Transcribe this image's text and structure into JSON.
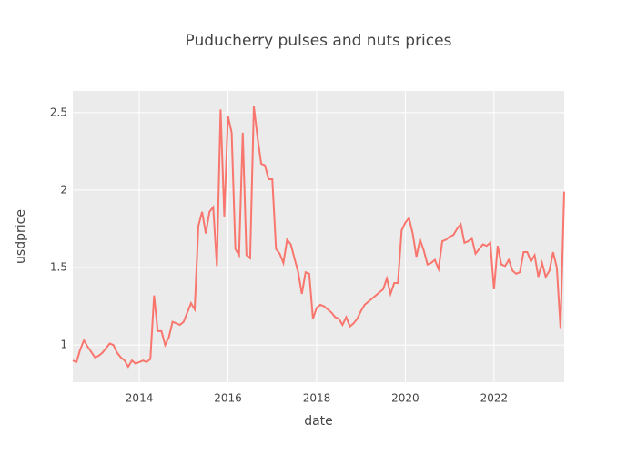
{
  "chart_data": {
    "type": "line",
    "title": "Puducherry pulses and nuts prices",
    "x_label": "date",
    "y_label": "usdprice",
    "x": [
      "2012-07",
      "2012-08",
      "2012-09",
      "2012-10",
      "2012-11",
      "2013-01",
      "2013-02",
      "2013-03",
      "2013-05",
      "2013-06",
      "2013-07",
      "2013-08",
      "2013-09",
      "2013-10",
      "2013-11",
      "2013-12",
      "2014-01",
      "2014-02",
      "2014-03",
      "2014-04",
      "2014-05",
      "2014-06",
      "2014-07",
      "2014-08",
      "2014-09",
      "2014-10",
      "2014-11",
      "2014-12",
      "2015-01",
      "2015-02",
      "2015-03",
      "2015-04",
      "2015-05",
      "2015-06",
      "2015-07",
      "2015-08",
      "2015-09",
      "2015-10",
      "2015-11",
      "2015-12",
      "2016-01",
      "2016-02",
      "2016-03",
      "2016-04",
      "2016-05",
      "2016-06",
      "2016-07",
      "2016-08",
      "2016-09",
      "2016-10",
      "2016-11",
      "2016-12",
      "2017-01",
      "2017-02",
      "2017-03",
      "2017-04",
      "2017-05",
      "2017-06",
      "2017-07",
      "2017-08",
      "2017-09",
      "2017-10",
      "2017-11",
      "2017-12",
      "2018-01",
      "2018-02",
      "2018-03",
      "2018-04",
      "2018-05",
      "2018-06",
      "2018-07",
      "2018-08",
      "2018-09",
      "2018-10",
      "2018-11",
      "2018-12",
      "2019-01",
      "2019-02",
      "2019-03",
      "2019-04",
      "2019-05",
      "2019-06",
      "2019-07",
      "2019-08",
      "2019-09",
      "2019-10",
      "2019-11",
      "2019-12",
      "2020-01",
      "2020-02",
      "2020-03",
      "2020-04",
      "2020-05",
      "2020-06",
      "2020-07",
      "2020-08",
      "2020-09",
      "2020-10",
      "2020-11",
      "2020-12",
      "2021-01",
      "2021-02",
      "2021-03",
      "2021-04",
      "2021-05",
      "2021-06",
      "2021-07",
      "2021-08",
      "2021-09",
      "2021-10",
      "2021-11",
      "2021-12",
      "2022-01",
      "2022-02",
      "2022-03",
      "2022-04",
      "2022-05",
      "2022-06",
      "2022-07",
      "2022-08",
      "2022-09",
      "2022-10",
      "2022-11",
      "2022-12",
      "2023-01",
      "2023-02",
      "2023-03",
      "2023-04",
      "2023-05",
      "2023-06",
      "2023-07",
      "2023-08"
    ],
    "series": [
      {
        "name": "usdprice",
        "color": "#F8766D",
        "values": [
          0.9,
          0.89,
          0.97,
          1.03,
          0.99,
          0.92,
          0.93,
          0.95,
          1.01,
          1.0,
          0.95,
          0.92,
          0.9,
          0.86,
          0.9,
          0.88,
          0.89,
          0.9,
          0.89,
          0.91,
          1.32,
          1.09,
          1.09,
          1.0,
          1.05,
          1.15,
          1.14,
          1.13,
          1.15,
          1.21,
          1.27,
          1.23,
          1.77,
          1.86,
          1.72,
          1.86,
          1.89,
          1.51,
          2.52,
          1.83,
          2.48,
          2.37,
          1.62,
          1.58,
          2.37,
          1.58,
          1.56,
          2.54,
          2.34,
          2.17,
          2.16,
          2.07,
          2.07,
          1.62,
          1.59,
          1.53,
          1.68,
          1.65,
          1.56,
          1.47,
          1.33,
          1.47,
          1.46,
          1.17,
          1.24,
          1.26,
          1.25,
          1.23,
          1.21,
          1.18,
          1.17,
          1.13,
          1.18,
          1.12,
          1.14,
          1.17,
          1.22,
          1.26,
          1.28,
          1.3,
          1.32,
          1.34,
          1.36,
          1.43,
          1.33,
          1.4,
          1.4,
          1.74,
          1.79,
          1.82,
          1.72,
          1.57,
          1.68,
          1.61,
          1.52,
          1.53,
          1.55,
          1.49,
          1.67,
          1.68,
          1.7,
          1.71,
          1.75,
          1.78,
          1.66,
          1.67,
          1.69,
          1.59,
          1.62,
          1.65,
          1.64,
          1.66,
          1.36,
          1.64,
          1.52,
          1.51,
          1.55,
          1.48,
          1.46,
          1.47,
          1.6,
          1.6,
          1.54,
          1.58,
          1.44,
          1.53,
          1.44,
          1.48,
          1.6,
          1.5,
          1.11,
          1.99
        ]
      }
    ],
    "xlim": [
      "2012-07",
      "2023-08"
    ],
    "xticks": [
      2014,
      2016,
      2018,
      2020,
      2022
    ],
    "ylim": [
      0.76,
      2.64
    ],
    "yticks": [
      1,
      1.5,
      2,
      2.5
    ],
    "grid": true
  }
}
